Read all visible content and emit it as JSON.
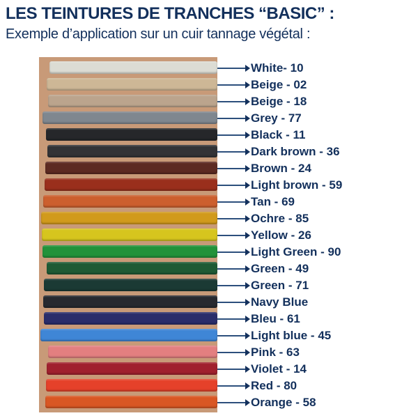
{
  "header": {
    "title": "LES TEINTURES DE TRANCHES “BASIC” :",
    "subtitle": "Exemple d’application sur un cuir tannage végétal :"
  },
  "swatches": [
    {
      "label": "White- 10",
      "color": "#dcdcd4"
    },
    {
      "label": "Beige - 02",
      "color": "#cdb796"
    },
    {
      "label": "Beige - 18",
      "color": "#bba48d"
    },
    {
      "label": "Grey - 77",
      "color": "#7f878f"
    },
    {
      "label": "Black - 11",
      "color": "#26272a"
    },
    {
      "label": "Dark brown - 36",
      "color": "#333336"
    },
    {
      "label": "Brown - 24",
      "color": "#5c2a22"
    },
    {
      "label": "Light brown - 59",
      "color": "#9a2f1c"
    },
    {
      "label": "Tan - 69",
      "color": "#cc5f2e"
    },
    {
      "label": "Ochre - 85",
      "color": "#d19a1c"
    },
    {
      "label": "Yellow - 26",
      "color": "#d6c51e"
    },
    {
      "label": "Light Green - 90",
      "color": "#23923a"
    },
    {
      "label": "Green - 49",
      "color": "#1e5a35"
    },
    {
      "label": "Green - 71",
      "color": "#1b3a34"
    },
    {
      "label": "Navy Blue",
      "color": "#28292f"
    },
    {
      "label": "Bleu - 61",
      "color": "#2a2d6a"
    },
    {
      "label": "Light blue - 45",
      "color": "#3f86d6"
    },
    {
      "label": "Pink - 63",
      "color": "#e37f80"
    },
    {
      "label": "Violet - 14",
      "color": "#a0202e"
    },
    {
      "label": "Red - 80",
      "color": "#e5412a"
    },
    {
      "label": "Orange - 58",
      "color": "#d95724"
    }
  ]
}
